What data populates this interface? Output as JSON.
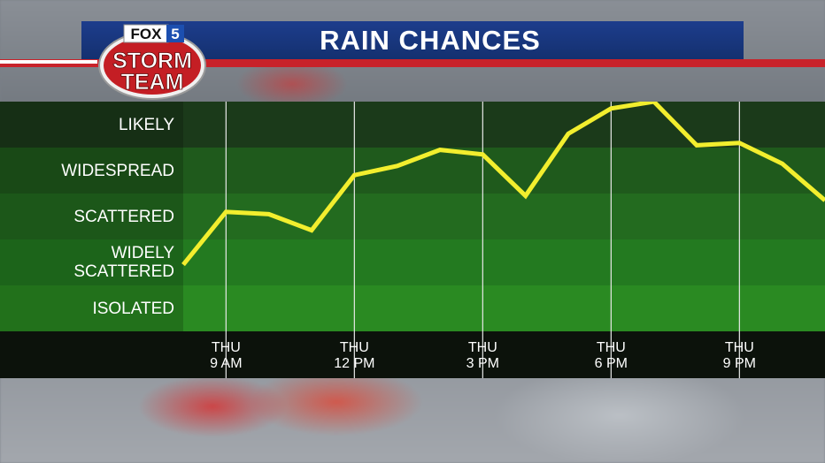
{
  "header": {
    "title": "RAIN CHANCES",
    "logo_text": {
      "brand": "FOX",
      "channel": "5",
      "line1": "STORM",
      "line2": "TEAM"
    }
  },
  "colors": {
    "title_bar": "#1a3a86",
    "accent_red": "#c8222a",
    "line": "#f2ee2e",
    "bands": [
      "#1b3a1a",
      "#1f5a1c",
      "#236b1f",
      "#237a20",
      "#2a8a22"
    ]
  },
  "chart_data": {
    "type": "line",
    "title": "RAIN CHANCES",
    "y_categories": [
      "ISOLATED",
      "WIDELY SCATTERED",
      "SCATTERED",
      "WIDESPREAD",
      "LIKELY"
    ],
    "y_category_lines": [
      [
        "ISOLATED"
      ],
      [
        "WIDELY",
        "SCATTERED"
      ],
      [
        "SCATTERED"
      ],
      [
        "WIDESPREAD"
      ],
      [
        "LIKELY"
      ]
    ],
    "ylim": [
      0,
      5
    ],
    "x_ticks": [
      {
        "line1": "THU",
        "line2": "9 AM",
        "hour": 9
      },
      {
        "line1": "THU",
        "line2": "12 PM",
        "hour": 12
      },
      {
        "line1": "THU",
        "line2": "3 PM",
        "hour": 15
      },
      {
        "line1": "THU",
        "line2": "6 PM",
        "hour": 18
      },
      {
        "line1": "THU",
        "line2": "9 PM",
        "hour": 21
      }
    ],
    "xlim": [
      8,
      23
    ],
    "series": [
      {
        "x": [
          8,
          9,
          10,
          11,
          12,
          13,
          14,
          15,
          16,
          17,
          18,
          19,
          20,
          21,
          22,
          23
        ],
        "y": [
          1.45,
          2.6,
          2.55,
          2.2,
          3.4,
          3.6,
          3.95,
          3.85,
          2.95,
          4.3,
          4.85,
          5.0,
          4.05,
          4.1,
          3.65,
          2.85
        ]
      }
    ],
    "grid": true
  }
}
